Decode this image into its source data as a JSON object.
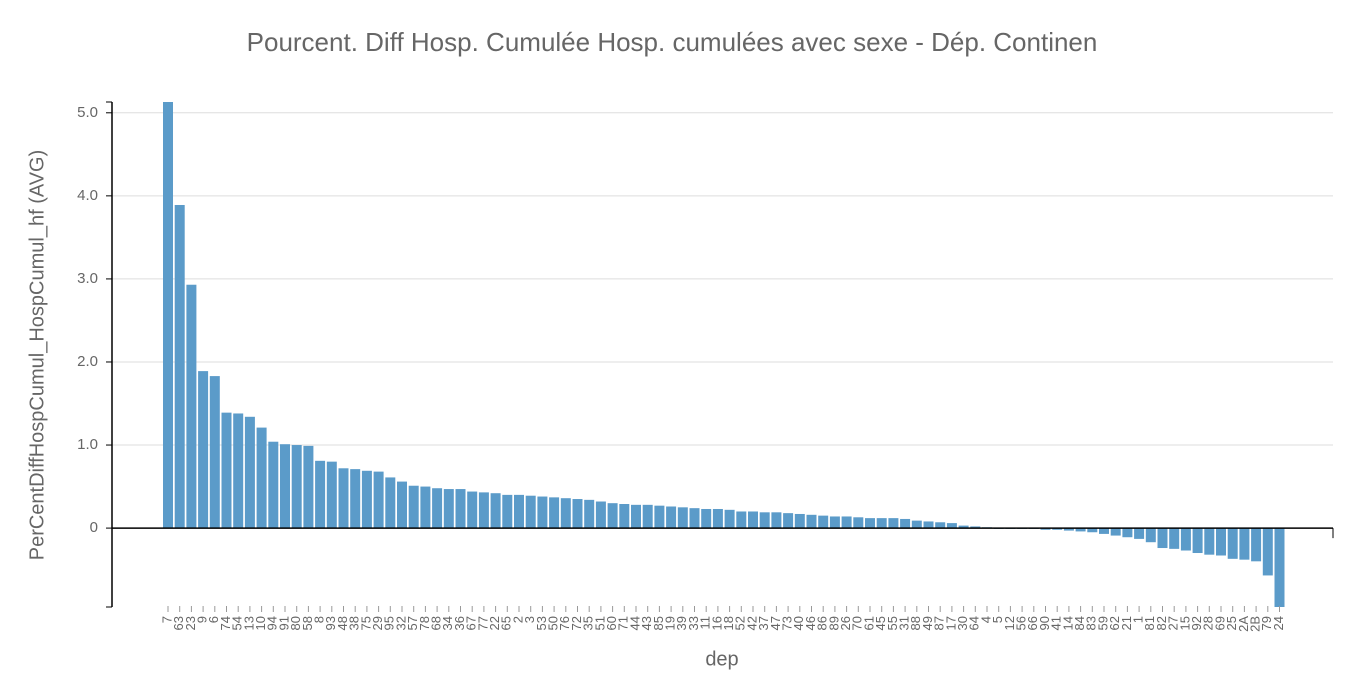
{
  "chart_data": {
    "type": "bar",
    "title": "Pourcent. Diff Hosp. Cumulée Hosp. cumulées avec sexe - Dép. Continen",
    "xlabel": "dep",
    "ylabel": "PerCentDiffHospCumul_HospCumul_hf (AVG)",
    "categories": [
      "7",
      "63",
      "23",
      "9",
      "6",
      "74",
      "54",
      "13",
      "10",
      "94",
      "91",
      "80",
      "58",
      "8",
      "93",
      "48",
      "38",
      "75",
      "29",
      "95",
      "32",
      "57",
      "78",
      "68",
      "34",
      "36",
      "67",
      "77",
      "22",
      "65",
      "2",
      "3",
      "53",
      "50",
      "76",
      "72",
      "35",
      "51",
      "60",
      "71",
      "44",
      "43",
      "85",
      "19",
      "39",
      "33",
      "11",
      "16",
      "18",
      "52",
      "42",
      "37",
      "47",
      "73",
      "40",
      "46",
      "86",
      "89",
      "26",
      "70",
      "61",
      "45",
      "55",
      "31",
      "88",
      "49",
      "87",
      "17",
      "30",
      "64",
      "4",
      "5",
      "12",
      "56",
      "66",
      "90",
      "41",
      "14",
      "84",
      "83",
      "59",
      "62",
      "21",
      "1",
      "81",
      "82",
      "27",
      "15",
      "92",
      "28",
      "69",
      "25",
      "2A",
      "2B",
      "79",
      "24"
    ],
    "values": [
      5.13,
      3.89,
      2.93,
      1.89,
      1.83,
      1.39,
      1.38,
      1.34,
      1.21,
      1.04,
      1.01,
      1.0,
      0.99,
      0.81,
      0.8,
      0.72,
      0.71,
      0.69,
      0.68,
      0.61,
      0.56,
      0.51,
      0.5,
      0.48,
      0.47,
      0.47,
      0.44,
      0.43,
      0.42,
      0.4,
      0.4,
      0.39,
      0.38,
      0.37,
      0.36,
      0.35,
      0.34,
      0.32,
      0.3,
      0.29,
      0.28,
      0.28,
      0.27,
      0.26,
      0.25,
      0.24,
      0.23,
      0.23,
      0.22,
      0.2,
      0.2,
      0.19,
      0.19,
      0.18,
      0.17,
      0.16,
      0.15,
      0.14,
      0.14,
      0.13,
      0.12,
      0.12,
      0.12,
      0.11,
      0.09,
      0.08,
      0.07,
      0.06,
      0.03,
      0.02,
      0.01,
      -0.01,
      -0.01,
      -0.01,
      -0.01,
      -0.02,
      -0.02,
      -0.03,
      -0.04,
      -0.05,
      -0.07,
      -0.09,
      -0.11,
      -0.13,
      -0.17,
      -0.24,
      -0.25,
      -0.27,
      -0.3,
      -0.32,
      -0.33,
      -0.37,
      -0.38,
      -0.4,
      -0.57,
      -0.95
    ],
    "color": "#5b9bc9",
    "ylim": [
      -0.95,
      5.13
    ],
    "yticks": [
      0,
      {
        "value": 1,
        "label": "1.0"
      },
      {
        "value": 2,
        "label": "2.0"
      },
      {
        "value": 3,
        "label": "3.0"
      },
      {
        "value": 4,
        "label": "4.0"
      },
      {
        "value": 5,
        "label": "5.0"
      }
    ],
    "grid": true
  }
}
